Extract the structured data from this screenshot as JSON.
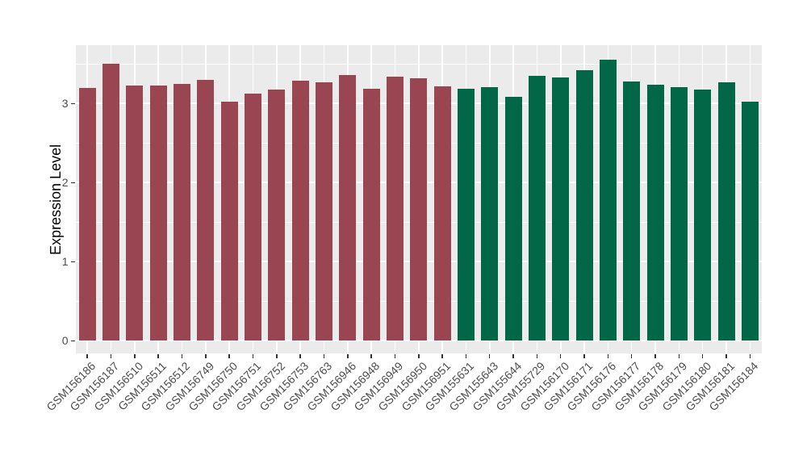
{
  "figure": {
    "background": "#FFFFFF"
  },
  "chart_data": {
    "type": "bar",
    "title": "",
    "xlabel": "",
    "ylabel": "Expression Level",
    "categories": [
      "GSM156186",
      "GSM156187",
      "GSM156510",
      "GSM156511",
      "GSM156512",
      "GSM156749",
      "GSM156750",
      "GSM156751",
      "GSM156752",
      "GSM156753",
      "GSM156763",
      "GSM156946",
      "GSM156948",
      "GSM156949",
      "GSM156950",
      "GSM156951",
      "GSM155631",
      "GSM155643",
      "GSM155644",
      "GSM155729",
      "GSM156170",
      "GSM156171",
      "GSM156176",
      "GSM156177",
      "GSM156178",
      "GSM156179",
      "GSM156180",
      "GSM156181",
      "GSM156184"
    ],
    "values": [
      3.2,
      3.51,
      3.23,
      3.23,
      3.25,
      3.3,
      3.03,
      3.13,
      3.18,
      3.29,
      3.27,
      3.36,
      3.19,
      3.34,
      3.32,
      3.22,
      3.19,
      3.21,
      3.09,
      3.35,
      3.33,
      3.42,
      3.56,
      3.28,
      3.24,
      3.21,
      3.18,
      3.27,
      3.03
    ],
    "bar_groups": [
      "group1",
      "group1",
      "group1",
      "group1",
      "group1",
      "group1",
      "group1",
      "group1",
      "group1",
      "group1",
      "group1",
      "group1",
      "group1",
      "group1",
      "group1",
      "group1",
      "group2",
      "group2",
      "group2",
      "group2",
      "group2",
      "group2",
      "group2",
      "group2",
      "group2",
      "group2",
      "group2",
      "group2",
      "group2"
    ],
    "group_colors": {
      "group1": "#9A4552",
      "group2": "#016747"
    },
    "yticks": [
      0,
      1,
      2,
      3
    ],
    "yticks_minor": [
      0.5,
      1.5,
      2.5,
      3.5
    ],
    "ylim": [
      -0.16,
      3.74
    ],
    "grid": true,
    "legend": false,
    "panel_bg": "#EBEBEB",
    "grid_color": "#FFFFFF",
    "tick_mark_color": "#333333",
    "tick_label_color": "#4D4D4D",
    "axis_title_color": "#000000"
  }
}
